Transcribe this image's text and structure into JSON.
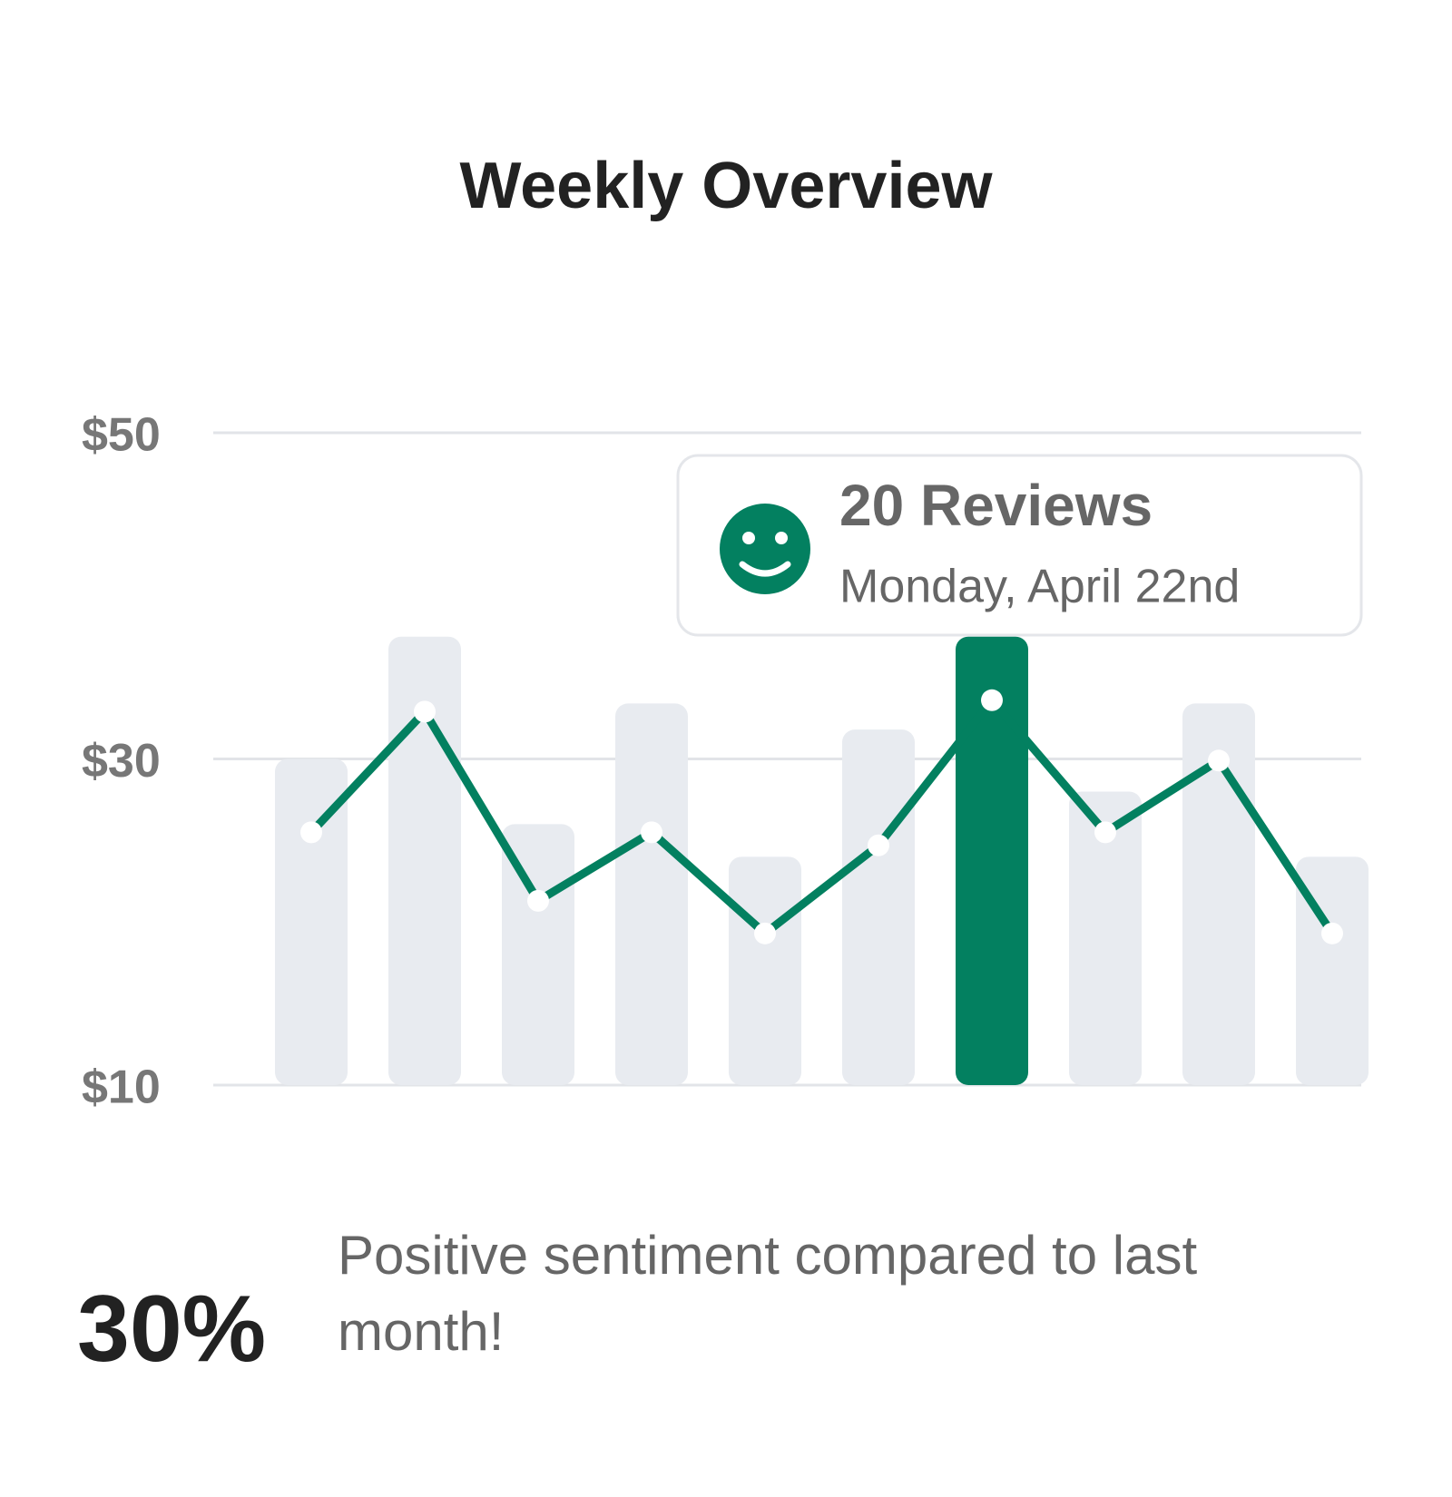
{
  "chart_data": {
    "type": "bar",
    "title": "Weekly Overview",
    "categories": [
      null,
      null,
      null,
      null,
      null,
      null,
      null,
      null,
      null,
      null
    ],
    "series": [
      {
        "type": "bar",
        "color": "#e8ebf0",
        "values": [
          30,
          37.5,
          26,
          33.4,
          24,
          31.8,
          37.5,
          28,
          33.4,
          24
        ]
      },
      {
        "type": "line",
        "color": "#038060",
        "values": [
          25.5,
          32.9,
          21.3,
          25.5,
          19.3,
          24.7,
          33.6,
          25.5,
          29.9,
          19.3
        ]
      }
    ],
    "highlight_index": 6,
    "highlight_color": "#038060",
    "ylim": [
      10,
      50
    ],
    "yticks": [
      {
        "value": 10,
        "label": "$10"
      },
      {
        "value": 30,
        "label": "$30"
      },
      {
        "value": 50,
        "label": "$50"
      }
    ],
    "grid": true,
    "tooltip": {
      "title": "20 Reviews",
      "subtitle": "Monday, April 22nd"
    }
  },
  "summary": {
    "value": "30%",
    "text": "Positive sentiment compared to last month!"
  }
}
